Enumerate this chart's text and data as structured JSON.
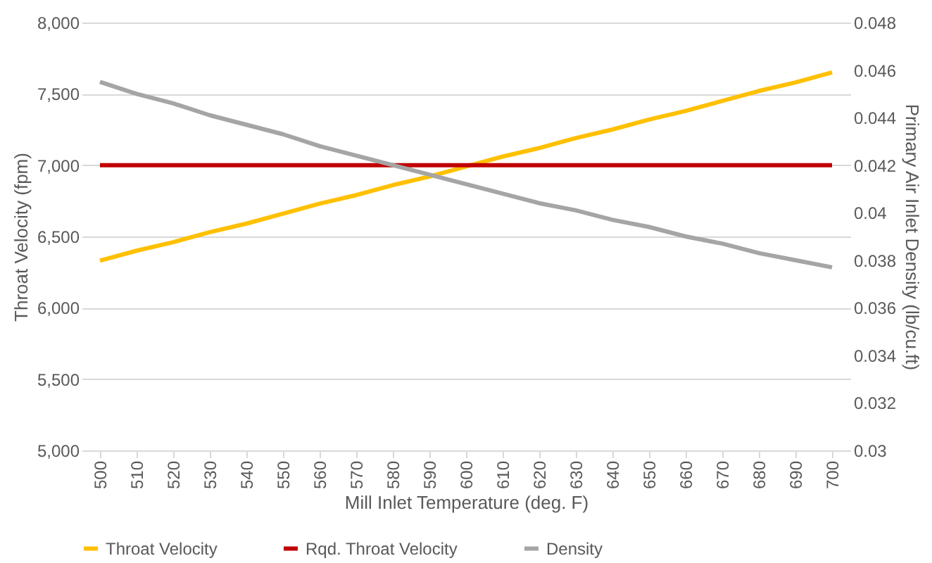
{
  "chart_data": {
    "type": "line",
    "xlabel": "Mill Inlet Temperature (deg. F)",
    "ylabel": "Throat Velocity (fpm)",
    "y2label": "Primary Air Inlet Density (lb/cu.ft)",
    "categories": [
      "500",
      "510",
      "520",
      "530",
      "540",
      "550",
      "560",
      "570",
      "580",
      "590",
      "600",
      "610",
      "620",
      "630",
      "640",
      "650",
      "660",
      "670",
      "680",
      "690",
      "700"
    ],
    "series": [
      {
        "name": "Throat Velocity",
        "color": "#ffc000",
        "values": [
          6330,
          6400,
          6460,
          6530,
          6590,
          6660,
          6730,
          6790,
          6860,
          6920,
          6990,
          7060,
          7120,
          7190,
          7250,
          7320,
          7380,
          7450,
          7520,
          7580,
          7650
        ]
      },
      {
        "name": "Rqd. Throat Velocity",
        "color": "#c00000",
        "values": [
          7000,
          7000,
          7000,
          7000,
          7000,
          7000,
          7000,
          7000,
          7000,
          7000,
          7000,
          7000,
          7000,
          7000,
          7000,
          7000,
          7000,
          7000,
          7000,
          7000,
          7000
        ]
      },
      {
        "name": "Density",
        "color": "#a5a5a5",
        "axis": "y2",
        "values": [
          0.0455,
          0.045,
          0.0446,
          0.0441,
          0.0437,
          0.0433,
          0.0428,
          0.0424,
          0.042,
          0.0416,
          0.0412,
          0.0408,
          0.0404,
          0.0401,
          0.0397,
          0.0394,
          0.039,
          0.0387,
          0.0383,
          0.038,
          0.0377
        ]
      }
    ],
    "ylim": [
      5000,
      8000
    ],
    "yticks": [
      {
        "value": 5000,
        "label": "5,000"
      },
      {
        "value": 5500,
        "label": "5,500"
      },
      {
        "value": 6000,
        "label": "6,000"
      },
      {
        "value": 6500,
        "label": "6,500"
      },
      {
        "value": 7000,
        "label": "7,000"
      },
      {
        "value": 7500,
        "label": "7,500"
      },
      {
        "value": 8000,
        "label": "8,000"
      }
    ],
    "y2lim": [
      0.03,
      0.048
    ],
    "y2ticks": [
      0.03,
      0.032,
      0.034,
      0.036,
      0.038,
      0.04,
      0.042,
      0.044,
      0.046,
      0.048
    ],
    "grid": "y",
    "legend": "bottom",
    "marker": "none",
    "line_style": "solid"
  }
}
